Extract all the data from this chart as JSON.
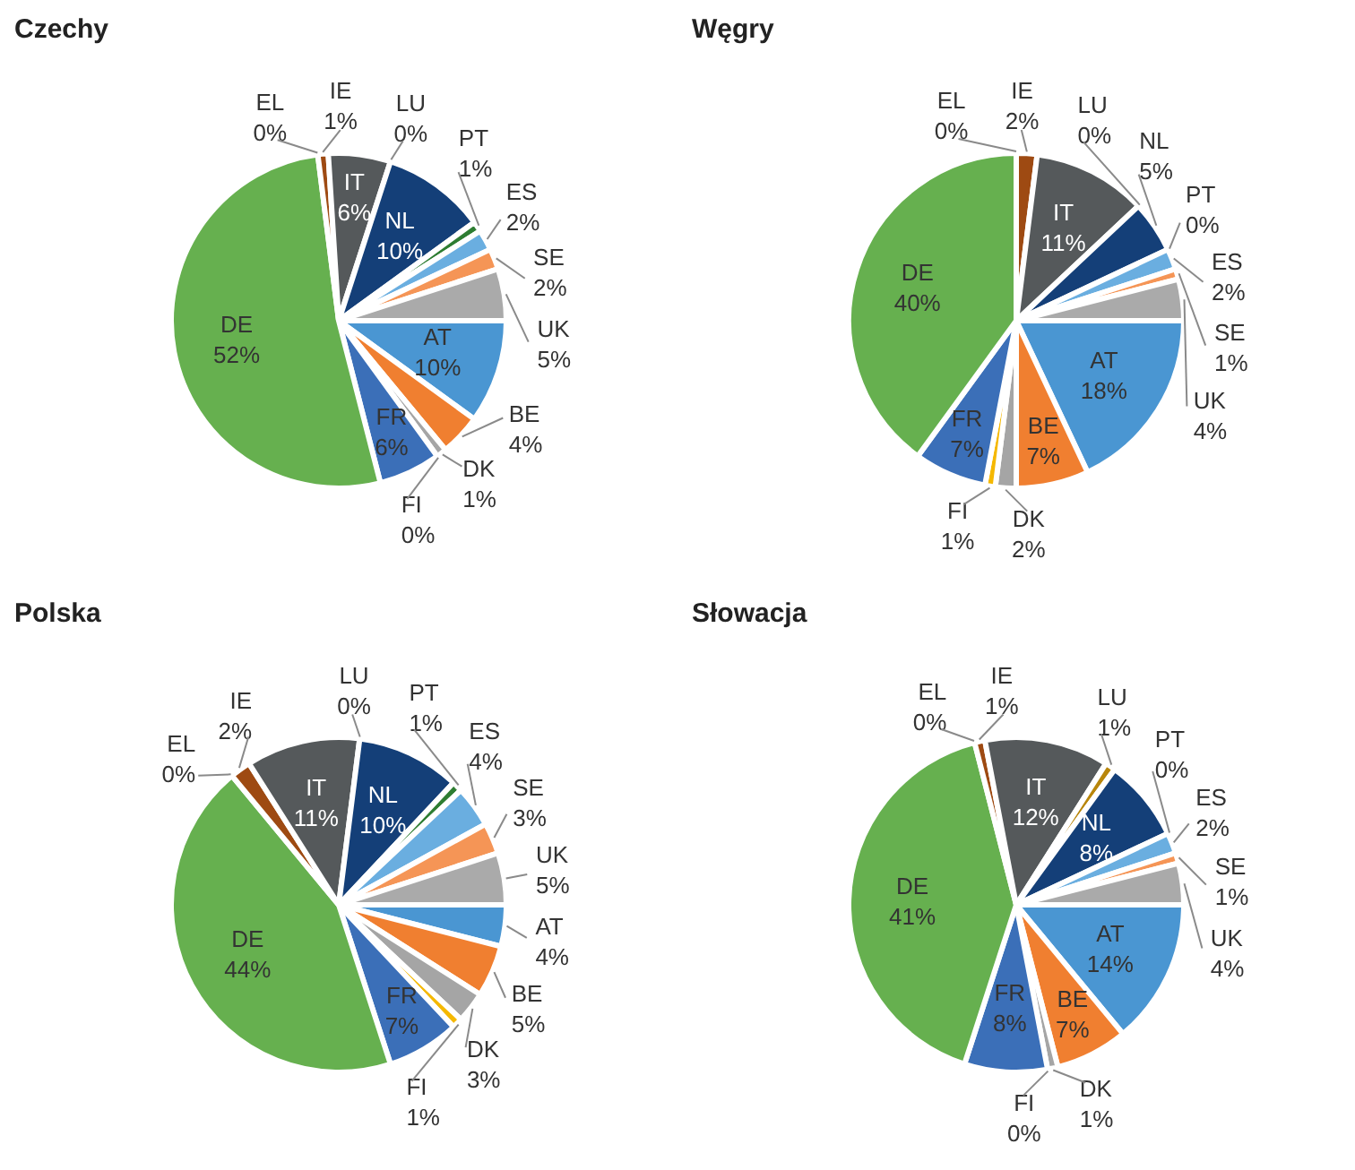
{
  "chart_data": [
    {
      "type": "pie",
      "title": "Czechy",
      "categories": [
        "AT",
        "BE",
        "DK",
        "FI",
        "FR",
        "DE",
        "EL",
        "IE",
        "IT",
        "LU",
        "NL",
        "PT",
        "ES",
        "SE",
        "UK"
      ],
      "values": [
        10,
        4,
        1,
        0,
        6,
        52,
        0,
        1,
        6,
        0,
        10,
        1,
        2,
        2,
        5
      ],
      "value_labels": [
        "10%",
        "4%",
        "1%",
        "0%",
        "6%",
        "52%",
        "0%",
        "1%",
        "6%",
        "0%",
        "10%",
        "1%",
        "2%",
        "2%",
        "5%"
      ],
      "colors": [
        "#4a96d2",
        "#f07f30",
        "#a5a5a5",
        "#f5b800",
        "#3b6fb8",
        "#66b04f",
        "#4f7f3a",
        "#9e4a12",
        "#55595b",
        "#b8860b",
        "#143f78",
        "#2e7d32",
        "#6aaee0",
        "#f59556",
        "#aaaaaa"
      ]
    },
    {
      "type": "pie",
      "title": "Węgry",
      "categories": [
        "AT",
        "BE",
        "DK",
        "FI",
        "FR",
        "DE",
        "EL",
        "IE",
        "IT",
        "LU",
        "NL",
        "PT",
        "ES",
        "SE",
        "UK"
      ],
      "values": [
        18,
        7,
        2,
        1,
        7,
        40,
        0,
        2,
        11,
        0,
        5,
        0,
        2,
        1,
        4
      ],
      "value_labels": [
        "18%",
        "7%",
        "2%",
        "1%",
        "7%",
        "40%",
        "0%",
        "2%",
        "11%",
        "0%",
        "5%",
        "0%",
        "2%",
        "1%",
        "4%"
      ],
      "colors": [
        "#4a96d2",
        "#f07f30",
        "#a5a5a5",
        "#f5b800",
        "#3b6fb8",
        "#66b04f",
        "#4f7f3a",
        "#9e4a12",
        "#55595b",
        "#b8860b",
        "#143f78",
        "#2e7d32",
        "#6aaee0",
        "#f59556",
        "#aaaaaa"
      ]
    },
    {
      "type": "pie",
      "title": "Polska",
      "categories": [
        "AT",
        "BE",
        "DK",
        "FI",
        "FR",
        "DE",
        "EL",
        "IE",
        "IT",
        "LU",
        "NL",
        "PT",
        "ES",
        "SE",
        "UK"
      ],
      "values": [
        4,
        5,
        3,
        1,
        7,
        44,
        0,
        2,
        11,
        0,
        10,
        1,
        4,
        3,
        5
      ],
      "value_labels": [
        "4%",
        "5%",
        "3%",
        "1%",
        "7%",
        "44%",
        "0%",
        "2%",
        "11%",
        "0%",
        "10%",
        "1%",
        "4%",
        "3%",
        "5%"
      ],
      "colors": [
        "#4a96d2",
        "#f07f30",
        "#a5a5a5",
        "#f5b800",
        "#3b6fb8",
        "#66b04f",
        "#4f7f3a",
        "#9e4a12",
        "#55595b",
        "#b8860b",
        "#143f78",
        "#2e7d32",
        "#6aaee0",
        "#f59556",
        "#aaaaaa"
      ]
    },
    {
      "type": "pie",
      "title": "Słowacja",
      "categories": [
        "AT",
        "BE",
        "DK",
        "FI",
        "FR",
        "DE",
        "EL",
        "IE",
        "IT",
        "LU",
        "NL",
        "PT",
        "ES",
        "SE",
        "UK"
      ],
      "values": [
        14,
        7,
        1,
        0,
        8,
        41,
        0,
        1,
        12,
        1,
        8,
        0,
        2,
        1,
        4
      ],
      "value_labels": [
        "14%",
        "7%",
        "1%",
        "0%",
        "8%",
        "41%",
        "0%",
        "1%",
        "12%",
        "1%",
        "8%",
        "0%",
        "2%",
        "1%",
        "4%"
      ],
      "colors": [
        "#4a96d2",
        "#f07f30",
        "#a5a5a5",
        "#f5b800",
        "#3b6fb8",
        "#66b04f",
        "#4f7f3a",
        "#9e4a12",
        "#55595b",
        "#b8860b",
        "#143f78",
        "#2e7d32",
        "#6aaee0",
        "#f59556",
        "#aaaaaa"
      ]
    }
  ]
}
